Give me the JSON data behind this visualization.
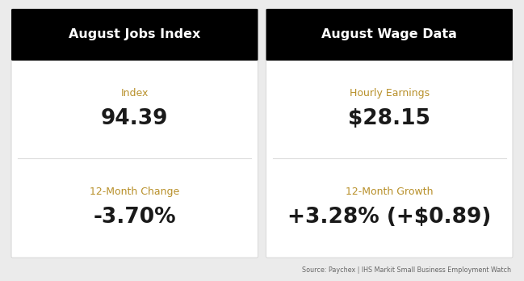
{
  "left_title": "August Jobs Index",
  "right_title": "August Wage Data",
  "left_label1": "Index",
  "left_value1": "94.39",
  "left_label2": "12-Month Change",
  "left_value2": "-3.70%",
  "right_label1": "Hourly Earnings",
  "right_value1": "$28.15",
  "right_label2": "12-Month Growth",
  "right_value2": "+3.28% (+$0.89)",
  "source_text": "Source: Paychex | IHS Markit Small Business Employment Watch",
  "header_bg": "#000000",
  "header_fg": "#ffffff",
  "card_bg": "#ffffff",
  "label_color": "#b8902a",
  "value_color": "#1a1a1a",
  "outer_bg": "#ebebeb",
  "divider_color": "#dddddd",
  "source_color": "#666666"
}
